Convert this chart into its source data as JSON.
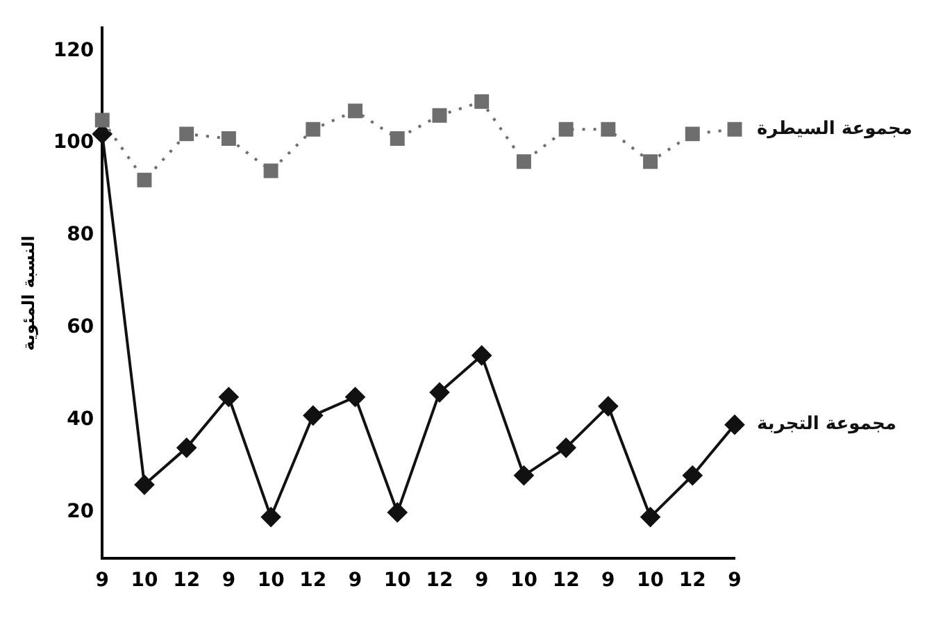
{
  "chart_data": {
    "type": "line",
    "ylabel": "النسبة المئوية",
    "categories": [
      "9",
      "10",
      "12",
      "9",
      "10",
      "12",
      "9",
      "10",
      "12",
      "9",
      "10",
      "12",
      "9",
      "10",
      "12",
      "9"
    ],
    "series": [
      {
        "name": "مجموعة السيطرة",
        "color": "#6e6e6e",
        "marker": "square",
        "line_style": "dotted",
        "values": [
          105,
          92,
          102,
          101,
          94,
          103,
          107,
          101,
          106,
          109,
          96,
          103,
          103,
          96,
          102,
          103
        ]
      },
      {
        "name": "مجموعة التجربة",
        "color": "#111111",
        "marker": "diamond",
        "line_style": "solid",
        "values": [
          102,
          26,
          34,
          45,
          19,
          41,
          45,
          20,
          46,
          54,
          28,
          34,
          43,
          19,
          28,
          39
        ]
      }
    ],
    "ylim": [
      10,
      125
    ],
    "yticks": [
      20,
      40,
      60,
      80,
      100,
      120
    ],
    "grid": false,
    "legend": false
  }
}
